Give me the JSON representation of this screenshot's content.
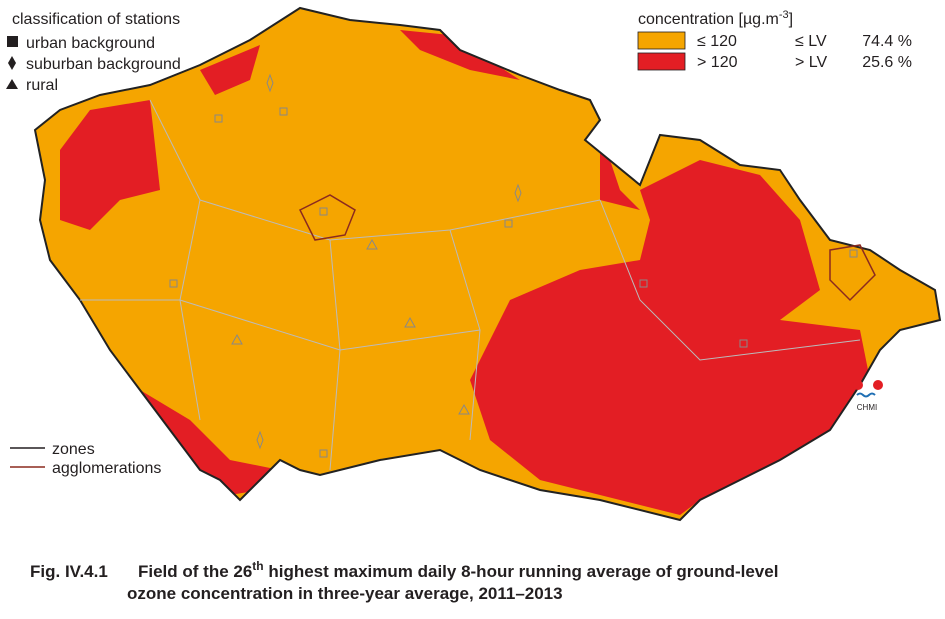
{
  "stations_legend": {
    "title": "classification of stations",
    "items": [
      "urban background",
      "suburban background",
      "rural"
    ]
  },
  "concentration_legend": {
    "title": "concentration [µg.m",
    "title_sup": "-3",
    "title_end": "]",
    "classes": [
      {
        "range": "≤ 120",
        "limit": "≤ LV",
        "share": "74.4 %",
        "color": "#f5a500"
      },
      {
        "range": "> 120",
        "limit": "> LV",
        "share": "25.6 %",
        "color": "#e31e24"
      }
    ]
  },
  "lines_legend": {
    "items": [
      "zones",
      "agglomerations"
    ]
  },
  "logo": "CHMI",
  "caption": {
    "label": "Fig. IV.4.1",
    "line1": "Field of the 26",
    "line1_sup": "th",
    "line1_end": " highest maximum daily 8-hour running average of ground-level",
    "line2": "ozone concentration in three-year average, 2011–2013"
  }
}
